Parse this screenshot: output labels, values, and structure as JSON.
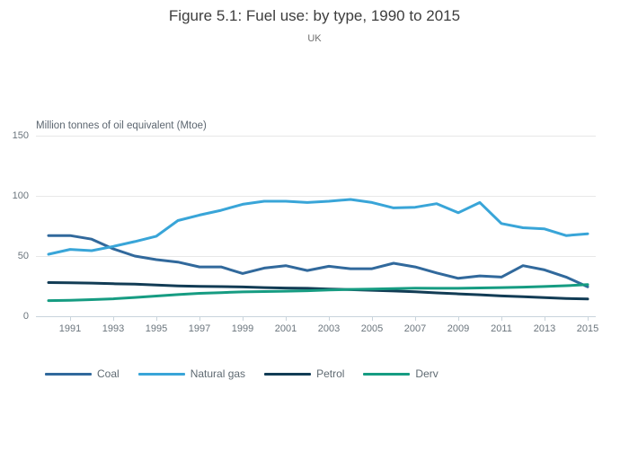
{
  "header": {
    "title": "Figure 5.1: Fuel use: by type, 1990 to 2015",
    "subtitle": "UK"
  },
  "chart_data": {
    "type": "line",
    "title": "Figure 5.1: Fuel use: by type, 1990 to 2015",
    "subtitle": "UK",
    "xlabel": "",
    "ylabel": "Million tonnes of oil equivalent (Mtoe)",
    "ylim": [
      0,
      150
    ],
    "yticks": [
      0,
      50,
      100,
      150
    ],
    "xticks": [
      1991,
      1993,
      1995,
      1997,
      1999,
      2001,
      2003,
      2005,
      2007,
      2009,
      2011,
      2013,
      2015
    ],
    "grid": "horizontal",
    "legend_position": "bottom",
    "x": [
      1990,
      1991,
      1992,
      1993,
      1994,
      1995,
      1996,
      1997,
      1998,
      1999,
      2000,
      2001,
      2002,
      2003,
      2004,
      2005,
      2006,
      2007,
      2008,
      2009,
      2010,
      2011,
      2012,
      2013,
      2014,
      2015
    ],
    "series": [
      {
        "name": "Coal",
        "color": "#31699c",
        "values": [
          67,
          67,
          64,
          56,
          50,
          47,
          45,
          41,
          41,
          35.5,
          40,
          42,
          38,
          41.5,
          39.5,
          39.5,
          44,
          41,
          36,
          31.5,
          33.5,
          32.5,
          42,
          38.5,
          32.5,
          24.5
        ]
      },
      {
        "name": "Natural gas",
        "color": "#39a5d8",
        "values": [
          51.5,
          55.5,
          54.5,
          58,
          62,
          66.5,
          79.5,
          84,
          88,
          93,
          95.5,
          95.5,
          94.5,
          95.5,
          97,
          94.5,
          90,
          90.5,
          93.5,
          86,
          94.5,
          77,
          73.5,
          72.5,
          67,
          68.5
        ]
      },
      {
        "name": "Petrol",
        "color": "#123c55",
        "values": [
          28,
          27.8,
          27.5,
          27,
          26.7,
          26,
          25.2,
          24.8,
          24.6,
          24.3,
          23.8,
          23.4,
          23.2,
          22.6,
          22.1,
          21.6,
          21,
          20.3,
          19.4,
          18.6,
          17.8,
          16.9,
          16.2,
          15.5,
          14.8,
          14.3
        ]
      },
      {
        "name": "Derv",
        "color": "#169c82",
        "values": [
          13,
          13.2,
          13.8,
          14.5,
          15.6,
          16.8,
          18,
          19,
          19.6,
          20.2,
          20.5,
          20.8,
          21.2,
          21.8,
          22.3,
          22.6,
          23,
          23.3,
          23.2,
          23.2,
          23.5,
          23.8,
          24.2,
          24.7,
          25.4,
          26.3
        ]
      }
    ]
  }
}
